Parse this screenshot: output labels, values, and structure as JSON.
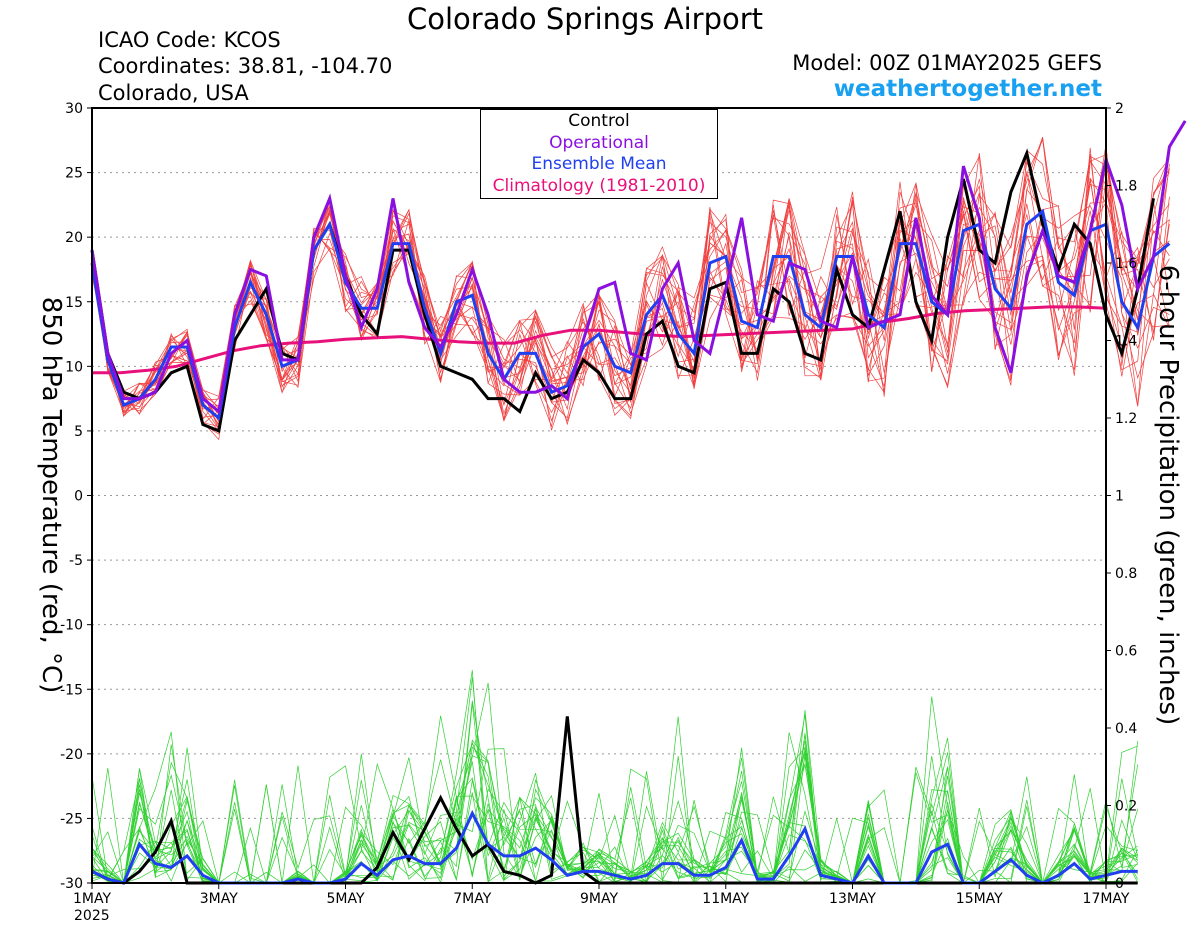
{
  "header": {
    "title": "Colorado Springs Airport",
    "icao": "ICAO Code: KCOS",
    "coords": "Coordinates: 38.81, -104.70",
    "region": "Colorado, USA",
    "model": "Model: 00Z 01MAY2025 GEFS",
    "site": "weathertogether.net"
  },
  "legend": {
    "items": [
      {
        "label": "Control",
        "color": "#000000"
      },
      {
        "label": "Operational",
        "color": "#8a10e0"
      },
      {
        "label": "Ensemble Mean",
        "color": "#2040f0"
      },
      {
        "label": "Climatology (1981-2010)",
        "color": "#e8107a"
      }
    ]
  },
  "chart_data": {
    "type": "line",
    "x_unit": "days since 00Z 01MAY2025 (6-hour steps)",
    "xlim": [
      0,
      16
    ],
    "x_ticks": [
      {
        "x": 0,
        "label": "1MAY",
        "sub": "2025"
      },
      {
        "x": 2,
        "label": "3MAY"
      },
      {
        "x": 4,
        "label": "5MAY"
      },
      {
        "x": 6,
        "label": "7MAY"
      },
      {
        "x": 8,
        "label": "9MAY"
      },
      {
        "x": 10,
        "label": "11MAY"
      },
      {
        "x": 12,
        "label": "13MAY"
      },
      {
        "x": 14,
        "label": "15MAY"
      },
      {
        "x": 16,
        "label": "17MAY"
      }
    ],
    "y_left": {
      "label": "850 hPa Temperature (red, °C)",
      "lim": [
        -30,
        30
      ],
      "ticks": [
        "30",
        "25",
        "20",
        "15",
        "10",
        "5",
        "0",
        "-5",
        "-10",
        "-15",
        "-20",
        "-25",
        "-30"
      ]
    },
    "y_right": {
      "label": "6-hour Precipitation (green, inches)",
      "lim": [
        0,
        2
      ],
      "ticks": [
        "2",
        "1.8",
        "1.6",
        "1.4",
        "1.2",
        "1",
        "0.8",
        "0.6",
        "0.4",
        "0.2",
        "0"
      ]
    },
    "grid": "dotted horizontal",
    "colors": {
      "members_temp": "#f04040",
      "members_precip": "#30d030",
      "control": "#000000",
      "operational": "#8a10e0",
      "ens_mean": "#2040f0",
      "climatology": "#e8107a"
    },
    "temperature": {
      "control": [
        19,
        11,
        8,
        7.5,
        8,
        9.5,
        10,
        5.5,
        5,
        12,
        14,
        16,
        11,
        10.5,
        19,
        21,
        17,
        14,
        12.5,
        19,
        19,
        14,
        10,
        9.5,
        9,
        7.5,
        7.5,
        6.5,
        9.5,
        7.5,
        8,
        10.5,
        9.5,
        7.5,
        7.5,
        12.5,
        13.5,
        10,
        9.5,
        16,
        16.5,
        11,
        11,
        16,
        15,
        11,
        10.5,
        17.5,
        14,
        13,
        17.5,
        22,
        15,
        12,
        20,
        24.5,
        19,
        18,
        23.5,
        26.5,
        21,
        17.5,
        21,
        19.5,
        14,
        11,
        16,
        23
      ],
      "operational": [
        19,
        11,
        7.5,
        7.5,
        8,
        11,
        12,
        7.5,
        6.5,
        14,
        17.5,
        17,
        10.5,
        10.5,
        20,
        23,
        17,
        13,
        16,
        23,
        16.5,
        13,
        11.5,
        14,
        17.5,
        14,
        9,
        8,
        8,
        8.5,
        7.5,
        12,
        16,
        16.5,
        11,
        10.5,
        16,
        18,
        12,
        11,
        16,
        21.5,
        14,
        13.5,
        18,
        17.5,
        13.5,
        13,
        18.5,
        13,
        13.5,
        14,
        21.5,
        15.5,
        14,
        25.5,
        21.5,
        13,
        9.5,
        17,
        20.5,
        17,
        16.5,
        20.5,
        26,
        22.5,
        16,
        18.5,
        27,
        29
      ],
      "ens_mean": [
        18,
        10.5,
        7,
        7.5,
        9,
        11.5,
        11.5,
        7,
        6,
        13,
        16.5,
        14,
        10,
        10.5,
        19,
        21,
        16.5,
        14.5,
        14.5,
        19.5,
        19.5,
        14.5,
        11,
        15,
        15.5,
        11,
        9,
        11,
        11,
        8,
        8.5,
        11.5,
        12.5,
        10,
        9.5,
        14,
        15.5,
        12.5,
        11,
        18,
        18.5,
        13.5,
        13,
        18.5,
        18.5,
        14,
        13,
        18.5,
        18.5,
        14,
        13,
        19.5,
        19.5,
        15,
        14,
        20.5,
        21,
        16,
        14.5,
        21,
        22,
        16.5,
        15.5,
        20.5,
        21,
        15,
        13,
        18.5,
        19.5
      ],
      "climatology": [
        9.5,
        9.5,
        9.7,
        10,
        10.6,
        11.2,
        11.6,
        11.8,
        11.9,
        12.1,
        12.2,
        12.3,
        12.1,
        11.9,
        11.8,
        11.8,
        12.4,
        12.8,
        12.8,
        12.6,
        12.4,
        12.3,
        12.4,
        12.5,
        12.6,
        12.7,
        12.8,
        12.9,
        13.4,
        13.7,
        14.1,
        14.3,
        14.4,
        14.5,
        14.6,
        14.6,
        14.5
      ]
    },
    "precipitation": {
      "control": [
        0.03,
        0.01,
        0.0,
        0.03,
        0.08,
        0.16,
        0.0,
        0.0,
        0.0,
        0.0,
        0.0,
        0.0,
        0.0,
        0.0,
        0.0,
        0.0,
        0.0,
        0.0,
        0.04,
        0.13,
        0.06,
        0.14,
        0.22,
        0.14,
        0.07,
        0.1,
        0.03,
        0.02,
        0.0,
        0.02,
        0.43,
        0.03,
        0.0,
        0.0,
        0.0,
        0.0,
        0.0,
        0.0,
        0.0,
        0.0,
        0.0,
        0.0,
        0.0,
        0.0,
        0.0,
        0.0,
        0.0,
        0.0,
        0.0,
        0.0,
        0.0,
        0.0,
        0.0,
        0.0,
        0.0,
        0.0,
        0.0,
        0.0,
        0.0,
        0.0,
        0.0,
        0.0,
        0.0,
        0.0,
        0.0,
        0.0,
        0.0
      ],
      "ens_mean": [
        0.03,
        0.01,
        0.0,
        0.1,
        0.05,
        0.04,
        0.07,
        0.02,
        0.0,
        0.0,
        0.0,
        0.0,
        0.0,
        0.01,
        0.0,
        0.0,
        0.01,
        0.05,
        0.02,
        0.06,
        0.07,
        0.05,
        0.05,
        0.09,
        0.18,
        0.1,
        0.07,
        0.07,
        0.09,
        0.06,
        0.02,
        0.03,
        0.03,
        0.02,
        0.01,
        0.02,
        0.05,
        0.05,
        0.02,
        0.02,
        0.04,
        0.11,
        0.01,
        0.01,
        0.07,
        0.14,
        0.02,
        0.01,
        0.0,
        0.07,
        0.0,
        0.0,
        0.0,
        0.08,
        0.1,
        0.0,
        0.0,
        0.03,
        0.06,
        0.02,
        0.0,
        0.02,
        0.05,
        0.01,
        0.02,
        0.03,
        0.03
      ]
    }
  }
}
